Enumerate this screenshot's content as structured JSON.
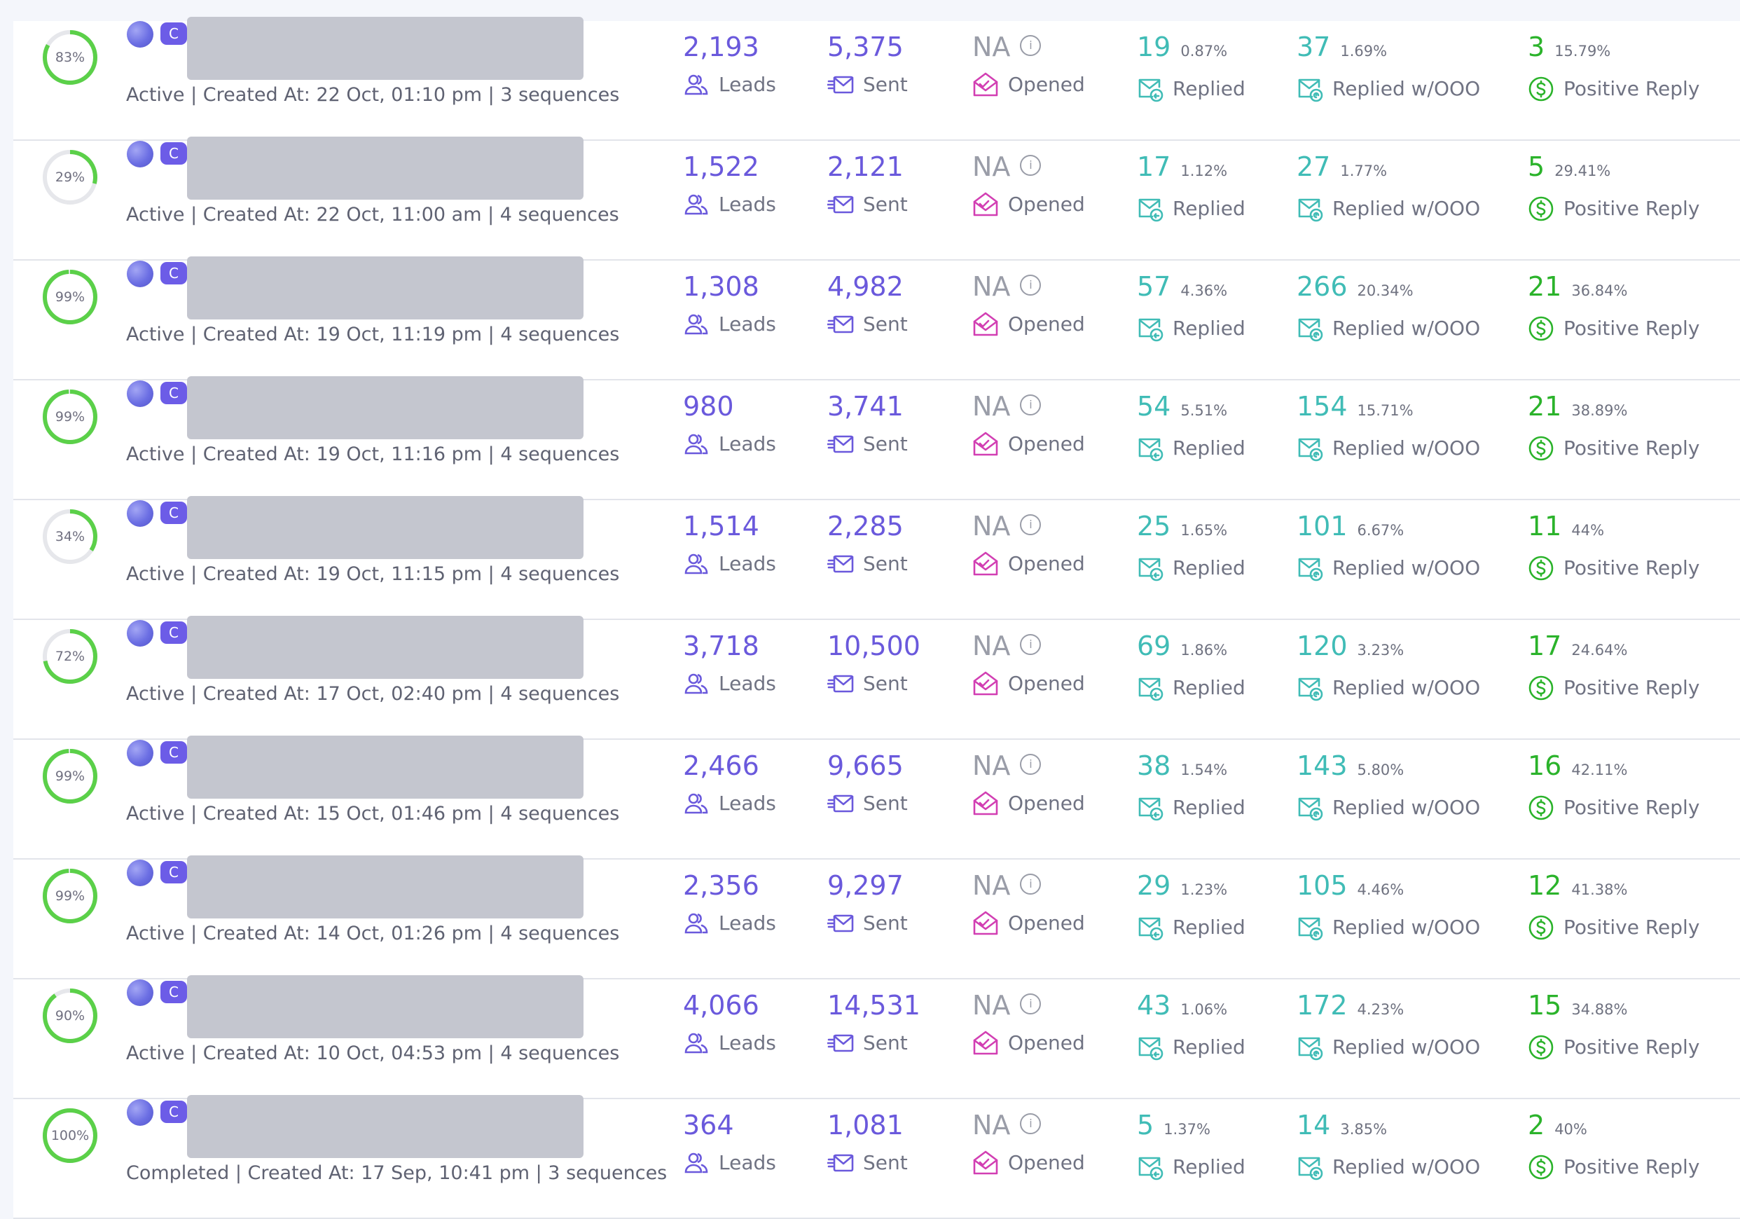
{
  "labels": {
    "leads": "Leads",
    "sent": "Sent",
    "opened": "Opened",
    "replied": "Replied",
    "replied_ooo": "Replied w/OOO",
    "positive": "Positive Reply",
    "badge": "C",
    "info": "i"
  },
  "colors": {
    "ring_track": "#e6e7eb",
    "ring_fill": "#5bd049",
    "primary": "#6a59dc",
    "reply": "#40bcb6",
    "positive": "#2bb32b",
    "opened_icon": "#d23fb3"
  },
  "icons": [
    "leads-icon",
    "sent-icon",
    "opened-icon",
    "replied-icon",
    "replied-ooo-icon",
    "positive-reply-icon",
    "info-icon"
  ],
  "campaigns": [
    {
      "progress": 83,
      "progress_label": "83%",
      "meta": "Active | Created At: 22 Oct, 01:10 pm | 3 sequences",
      "leads": "2,193",
      "sent": "5,375",
      "opened": "NA",
      "replied": "19",
      "replied_pct": "0.87%",
      "ooo": "37",
      "ooo_pct": "1.69%",
      "positive": "3",
      "positive_pct": "15.79%"
    },
    {
      "progress": 29,
      "progress_label": "29%",
      "meta": "Active | Created At: 22 Oct, 11:00 am | 4 sequences",
      "leads": "1,522",
      "sent": "2,121",
      "opened": "NA",
      "replied": "17",
      "replied_pct": "1.12%",
      "ooo": "27",
      "ooo_pct": "1.77%",
      "positive": "5",
      "positive_pct": "29.41%"
    },
    {
      "progress": 99,
      "progress_label": "99%",
      "meta": "Active | Created At: 19 Oct, 11:19 pm | 4 sequences",
      "leads": "1,308",
      "sent": "4,982",
      "opened": "NA",
      "replied": "57",
      "replied_pct": "4.36%",
      "ooo": "266",
      "ooo_pct": "20.34%",
      "positive": "21",
      "positive_pct": "36.84%"
    },
    {
      "progress": 99,
      "progress_label": "99%",
      "meta": "Active | Created At: 19 Oct, 11:16 pm | 4 sequences",
      "leads": "980",
      "sent": "3,741",
      "opened": "NA",
      "replied": "54",
      "replied_pct": "5.51%",
      "ooo": "154",
      "ooo_pct": "15.71%",
      "positive": "21",
      "positive_pct": "38.89%"
    },
    {
      "progress": 34,
      "progress_label": "34%",
      "meta": "Active | Created At: 19 Oct, 11:15 pm | 4 sequences",
      "leads": "1,514",
      "sent": "2,285",
      "opened": "NA",
      "replied": "25",
      "replied_pct": "1.65%",
      "ooo": "101",
      "ooo_pct": "6.67%",
      "positive": "11",
      "positive_pct": "44%"
    },
    {
      "progress": 72,
      "progress_label": "72%",
      "meta": "Active | Created At: 17 Oct, 02:40 pm | 4 sequences",
      "leads": "3,718",
      "sent": "10,500",
      "opened": "NA",
      "replied": "69",
      "replied_pct": "1.86%",
      "ooo": "120",
      "ooo_pct": "3.23%",
      "positive": "17",
      "positive_pct": "24.64%"
    },
    {
      "progress": 99,
      "progress_label": "99%",
      "meta": "Active | Created At: 15 Oct, 01:46 pm | 4 sequences",
      "leads": "2,466",
      "sent": "9,665",
      "opened": "NA",
      "replied": "38",
      "replied_pct": "1.54%",
      "ooo": "143",
      "ooo_pct": "5.80%",
      "positive": "16",
      "positive_pct": "42.11%"
    },
    {
      "progress": 99,
      "progress_label": "99%",
      "meta": "Active | Created At: 14 Oct, 01:26 pm | 4 sequences",
      "leads": "2,356",
      "sent": "9,297",
      "opened": "NA",
      "replied": "29",
      "replied_pct": "1.23%",
      "ooo": "105",
      "ooo_pct": "4.46%",
      "positive": "12",
      "positive_pct": "41.38%"
    },
    {
      "progress": 90,
      "progress_label": "90%",
      "meta": "Active | Created At: 10 Oct, 04:53 pm | 4 sequences",
      "leads": "4,066",
      "sent": "14,531",
      "opened": "NA",
      "replied": "43",
      "replied_pct": "1.06%",
      "ooo": "172",
      "ooo_pct": "4.23%",
      "positive": "15",
      "positive_pct": "34.88%"
    },
    {
      "progress": 100,
      "progress_label": "100%",
      "meta": "Completed | Created At: 17 Sep, 10:41 pm | 3 sequences",
      "leads": "364",
      "sent": "1,081",
      "opened": "NA",
      "replied": "5",
      "replied_pct": "1.37%",
      "ooo": "14",
      "ooo_pct": "3.85%",
      "positive": "2",
      "positive_pct": "40%"
    }
  ]
}
